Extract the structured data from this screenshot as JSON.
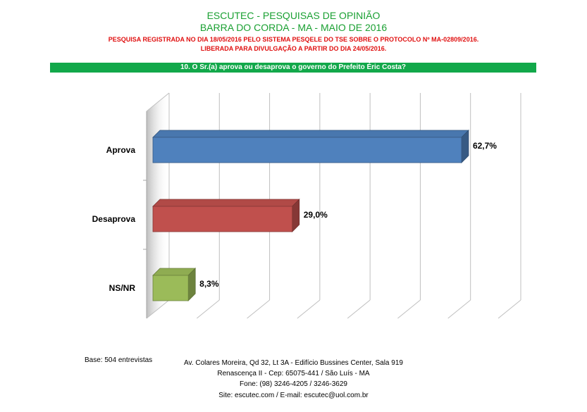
{
  "header": {
    "title": "ESCUTEC - PESQUISAS DE OPINIÃO",
    "subtitle": "BARRA DO CORDA - MA - MAIO DE 2016",
    "registration_line1": "PESQUISA REGISTRADA NO DIA 18/05/2016 PELO SISTEMA PESQELE DO TSE SOBRE O PROTOCOLO Nº MA-02809/2016.",
    "registration_line2": "LIBERADA PARA DIVULGAÇÃO A PARTIR DO DIA 24/05/2016.",
    "question": "10. O Sr.(a) aprova ou desaprova o governo do Prefeito Éric Costa?"
  },
  "colors": {
    "title_green": "#1aa032",
    "registration_red": "#e01010",
    "question_bar_green": "#12a84a"
  },
  "chart_data": {
    "type": "bar",
    "orientation": "horizontal",
    "style": "3d",
    "categories": [
      "Aprova",
      "Desaprova",
      "NS/NR"
    ],
    "values": [
      62.7,
      29.0,
      8.3
    ],
    "value_labels": [
      "62,7%",
      "29,0%",
      "8,3%"
    ],
    "colors": [
      "#4f81bd",
      "#c0504d",
      "#9bbb59"
    ],
    "xlim": [
      0,
      70
    ],
    "grid": true,
    "legend": "none"
  },
  "footer": {
    "base": "Base: 504 entrevistas",
    "address_line1": "Av. Colares Moreira, Qd 32, Lt 3A - Edifício Bussines Center, Sala 919",
    "address_line2": "Renascença II - Cep: 65075-441 / São Luís - MA",
    "phone": "Fone: (98) 3246-4205 / 3246-3629",
    "site": "Site: escutec.com / E-mail: escutec@uol.com.br"
  }
}
